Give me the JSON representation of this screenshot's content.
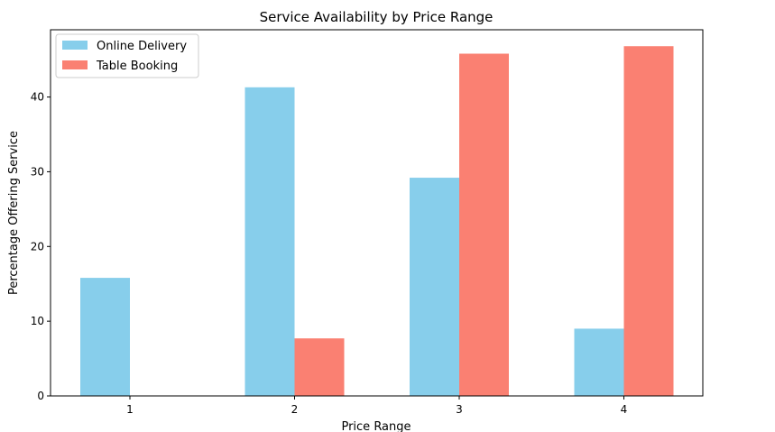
{
  "chart_data": {
    "type": "bar",
    "title": "Service Availability by Price Range",
    "xlabel": "Price Range",
    "ylabel": "Percentage Offering Service",
    "categories": [
      "1",
      "2",
      "3",
      "4"
    ],
    "series": [
      {
        "name": "Online Delivery",
        "color": "#87CEEB",
        "values": [
          15.8,
          41.3,
          29.2,
          9.0
        ]
      },
      {
        "name": "Table Booking",
        "color": "#FA8072",
        "values": [
          0.0,
          7.7,
          45.8,
          46.8
        ]
      }
    ],
    "ylim": [
      0,
      49
    ],
    "yticks": [
      0,
      10,
      20,
      30,
      40
    ],
    "grid": false,
    "legend": "top-left"
  }
}
